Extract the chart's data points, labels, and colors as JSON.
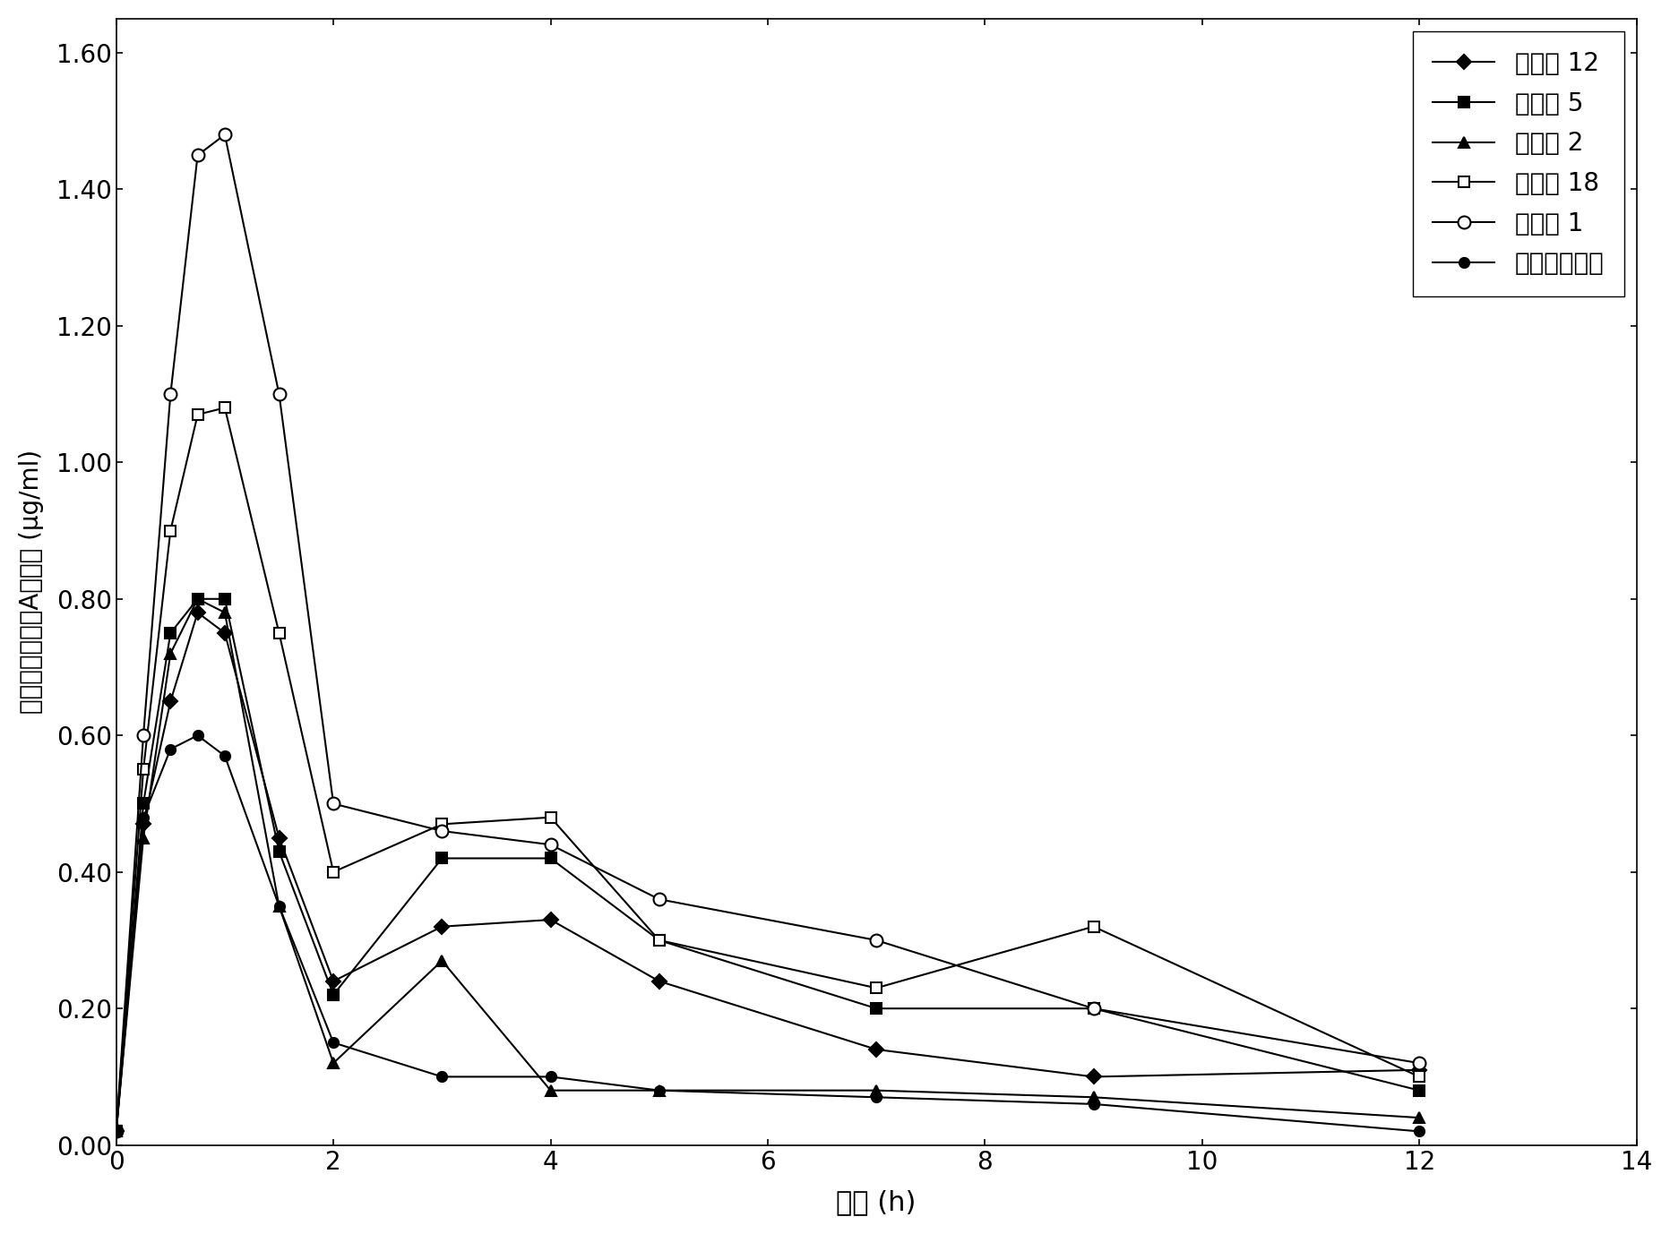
{
  "title": "",
  "xlabel": "时间 (h)",
  "ylabel": "血浆中连翘酯苷A的浓度 (μg/ml)",
  "xlim": [
    0,
    14
  ],
  "ylim": [
    0.0,
    1.65
  ],
  "xticks": [
    0,
    2,
    4,
    6,
    8,
    10,
    12,
    14
  ],
  "yticks": [
    0.0,
    0.2,
    0.4,
    0.6,
    0.8,
    1.0,
    1.2,
    1.4,
    1.6
  ],
  "series": [
    {
      "label": "实施例 12",
      "marker": "D",
      "fillstyle": "full",
      "color": "#000000",
      "markersize": 8,
      "x": [
        0,
        0.25,
        0.5,
        0.75,
        1,
        1.5,
        2,
        3,
        4,
        5,
        7,
        9,
        12
      ],
      "y": [
        0.02,
        0.47,
        0.65,
        0.78,
        0.75,
        0.45,
        0.24,
        0.32,
        0.33,
        0.24,
        0.14,
        0.1,
        0.11
      ]
    },
    {
      "label": "实施例 5",
      "marker": "s",
      "fillstyle": "full",
      "color": "#000000",
      "markersize": 8,
      "x": [
        0,
        0.25,
        0.5,
        0.75,
        1,
        1.5,
        2,
        3,
        4,
        5,
        7,
        9,
        12
      ],
      "y": [
        0.02,
        0.5,
        0.75,
        0.8,
        0.8,
        0.43,
        0.22,
        0.42,
        0.42,
        0.3,
        0.2,
        0.2,
        0.08
      ]
    },
    {
      "label": "实施例 2",
      "marker": "^",
      "fillstyle": "full",
      "color": "#000000",
      "markersize": 8,
      "x": [
        0,
        0.25,
        0.5,
        0.75,
        1,
        1.5,
        2,
        3,
        4,
        5,
        7,
        9,
        12
      ],
      "y": [
        0.02,
        0.45,
        0.72,
        0.8,
        0.78,
        0.35,
        0.12,
        0.27,
        0.08,
        0.08,
        0.08,
        0.07,
        0.04
      ]
    },
    {
      "label": "实施例 18",
      "marker": "s",
      "fillstyle": "none",
      "color": "#000000",
      "markersize": 9,
      "x": [
        0,
        0.25,
        0.5,
        0.75,
        1,
        1.5,
        2,
        3,
        4,
        5,
        7,
        9,
        12
      ],
      "y": [
        0.02,
        0.55,
        0.9,
        1.07,
        1.08,
        0.75,
        0.4,
        0.47,
        0.48,
        0.3,
        0.23,
        0.32,
        0.1
      ]
    },
    {
      "label": "实施例 1",
      "marker": "o",
      "fillstyle": "none",
      "color": "#000000",
      "markersize": 10,
      "x": [
        0,
        0.25,
        0.5,
        0.75,
        1,
        1.5,
        2,
        3,
        4,
        5,
        7,
        9,
        12
      ],
      "y": [
        0.02,
        0.6,
        1.1,
        1.45,
        1.48,
        1.1,
        0.5,
        0.46,
        0.44,
        0.36,
        0.3,
        0.2,
        0.12
      ]
    },
    {
      "label": "水溶液对照组",
      "marker": "o",
      "fillstyle": "full",
      "color": "#000000",
      "markersize": 8,
      "x": [
        0,
        0.25,
        0.5,
        0.75,
        1,
        1.5,
        2,
        3,
        4,
        5,
        7,
        9,
        12
      ],
      "y": [
        0.02,
        0.48,
        0.58,
        0.6,
        0.57,
        0.35,
        0.15,
        0.1,
        0.1,
        0.08,
        0.07,
        0.06,
        0.02
      ]
    }
  ],
  "background_color": "#ffffff",
  "linewidth": 1.5
}
